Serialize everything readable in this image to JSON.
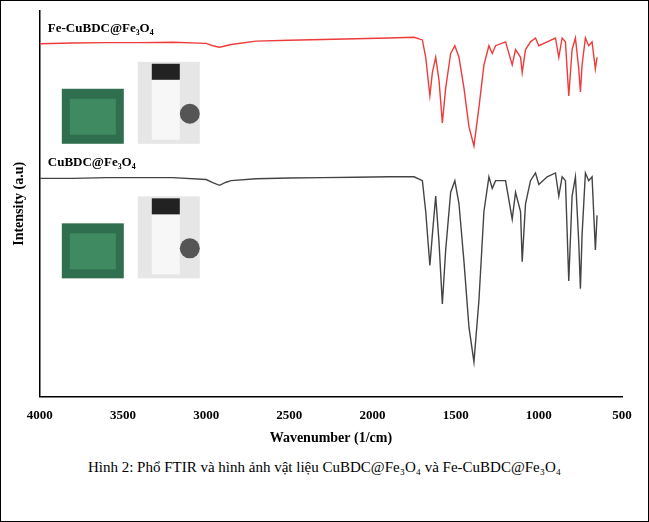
{
  "chart_data": {
    "type": "line",
    "x_label": "Wavenumber (1/cm)",
    "y_label": "Intensity (a.u)",
    "caption": "Hình 2: Phổ FTIR và hình ảnh vật liệu CuBDC@Fe₃O₄ và Fe-CuBDC@Fe₃O₄",
    "x": [
      4000,
      3800,
      3600,
      3400,
      3200,
      3000,
      2960,
      2920,
      2880,
      2850,
      2700,
      2500,
      2300,
      2100,
      1900,
      1750,
      1700,
      1680,
      1655,
      1640,
      1620,
      1600,
      1580,
      1560,
      1530,
      1505,
      1480,
      1450,
      1420,
      1390,
      1360,
      1330,
      1300,
      1280,
      1260,
      1200,
      1160,
      1140,
      1110,
      1100,
      1080,
      1050,
      1020,
      1000,
      950,
      900,
      880,
      860,
      840,
      820,
      800,
      780,
      760,
      750,
      740,
      720,
      700,
      680,
      660,
      650
    ],
    "series": [
      {
        "name": "Fe-CuBDC@Fe₃O₄",
        "color": "#ee3b3b",
        "values": [
          91.5,
          91.7,
          91.8,
          91.8,
          91.9,
          91.6,
          91.0,
          90.6,
          91.0,
          91.3,
          92.2,
          92.4,
          92.6,
          92.8,
          93.0,
          93.2,
          92.5,
          88,
          78,
          84,
          88,
          82,
          71,
          80,
          89,
          91,
          88,
          80,
          70,
          65,
          75,
          86,
          91,
          89,
          91,
          92,
          86,
          90,
          88,
          84,
          90,
          92,
          93,
          91,
          92,
          93,
          88,
          93,
          92,
          78,
          90,
          93,
          85,
          79,
          86,
          93,
          91,
          92,
          85,
          88
        ]
      },
      {
        "name": "CuBDC@Fe₃O₄",
        "color": "#444444",
        "values": [
          56.6,
          56.6,
          56.8,
          56.8,
          56.8,
          56.3,
          55.5,
          54.8,
          55.6,
          56.0,
          56.5,
          56.7,
          56.8,
          56.9,
          57.0,
          57.0,
          56.0,
          48,
          34,
          42,
          52,
          40,
          24,
          38,
          53,
          56,
          50,
          35,
          18,
          9,
          25,
          48,
          57,
          54,
          56,
          56,
          46,
          53,
          48,
          35,
          50,
          56,
          58,
          55,
          57,
          58,
          52,
          57,
          56,
          30,
          52,
          57,
          40,
          28,
          42,
          58,
          56,
          57,
          38,
          47
        ]
      }
    ],
    "xlim": [
      4000,
      500
    ],
    "xticks": [
      4000,
      3500,
      3000,
      2500,
      2000,
      1500,
      1000,
      500
    ],
    "ylim": [
      0,
      100
    ],
    "tick_labels": "x",
    "grid": false
  }
}
